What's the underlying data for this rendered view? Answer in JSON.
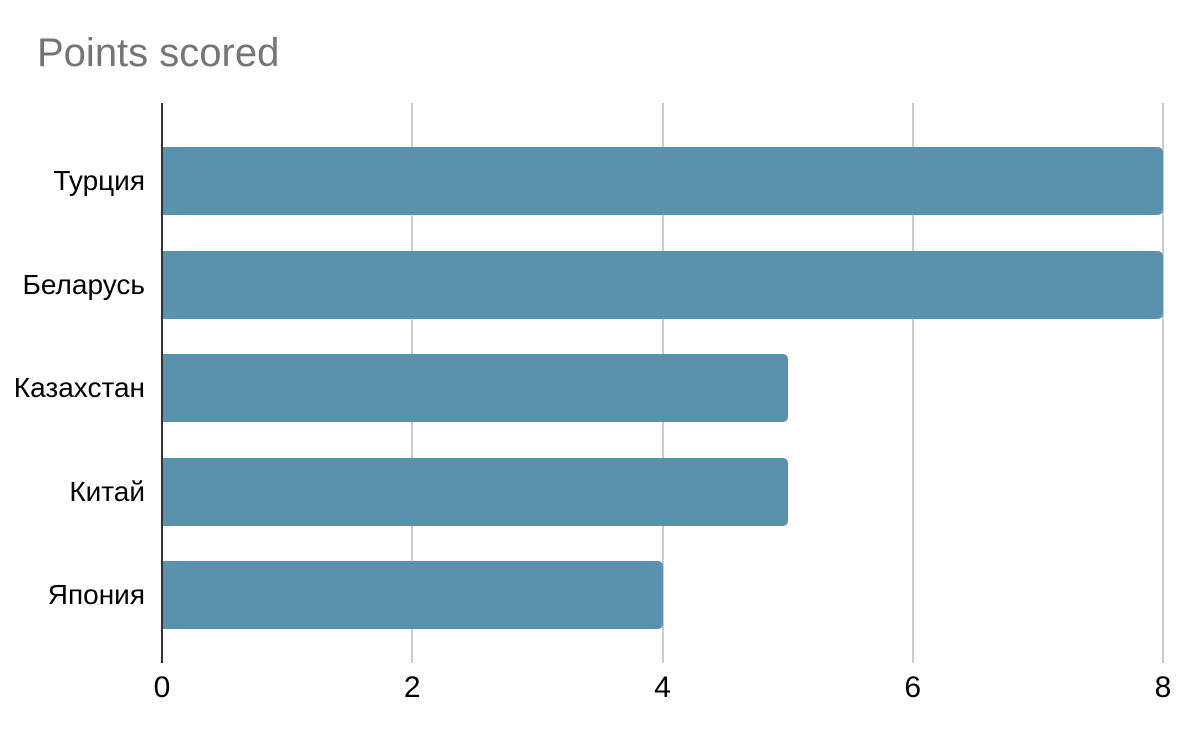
{
  "chart_data": {
    "type": "bar",
    "orientation": "horizontal",
    "title": "Points scored",
    "categories": [
      "Турция",
      "Беларусь",
      "Казахстан",
      "Китай",
      "Япония"
    ],
    "values": [
      8,
      8,
      5,
      5,
      4
    ],
    "xlabel": "",
    "ylabel": "",
    "xlim": [
      0,
      8
    ],
    "x_ticks": [
      0,
      2,
      4,
      6,
      8
    ],
    "grid": true,
    "legend": "none",
    "colors": {
      "bar": "#5a91ad",
      "title": "#757575",
      "axis_line": "#333333",
      "gridline": "#cccccc",
      "label": "#000000"
    }
  }
}
